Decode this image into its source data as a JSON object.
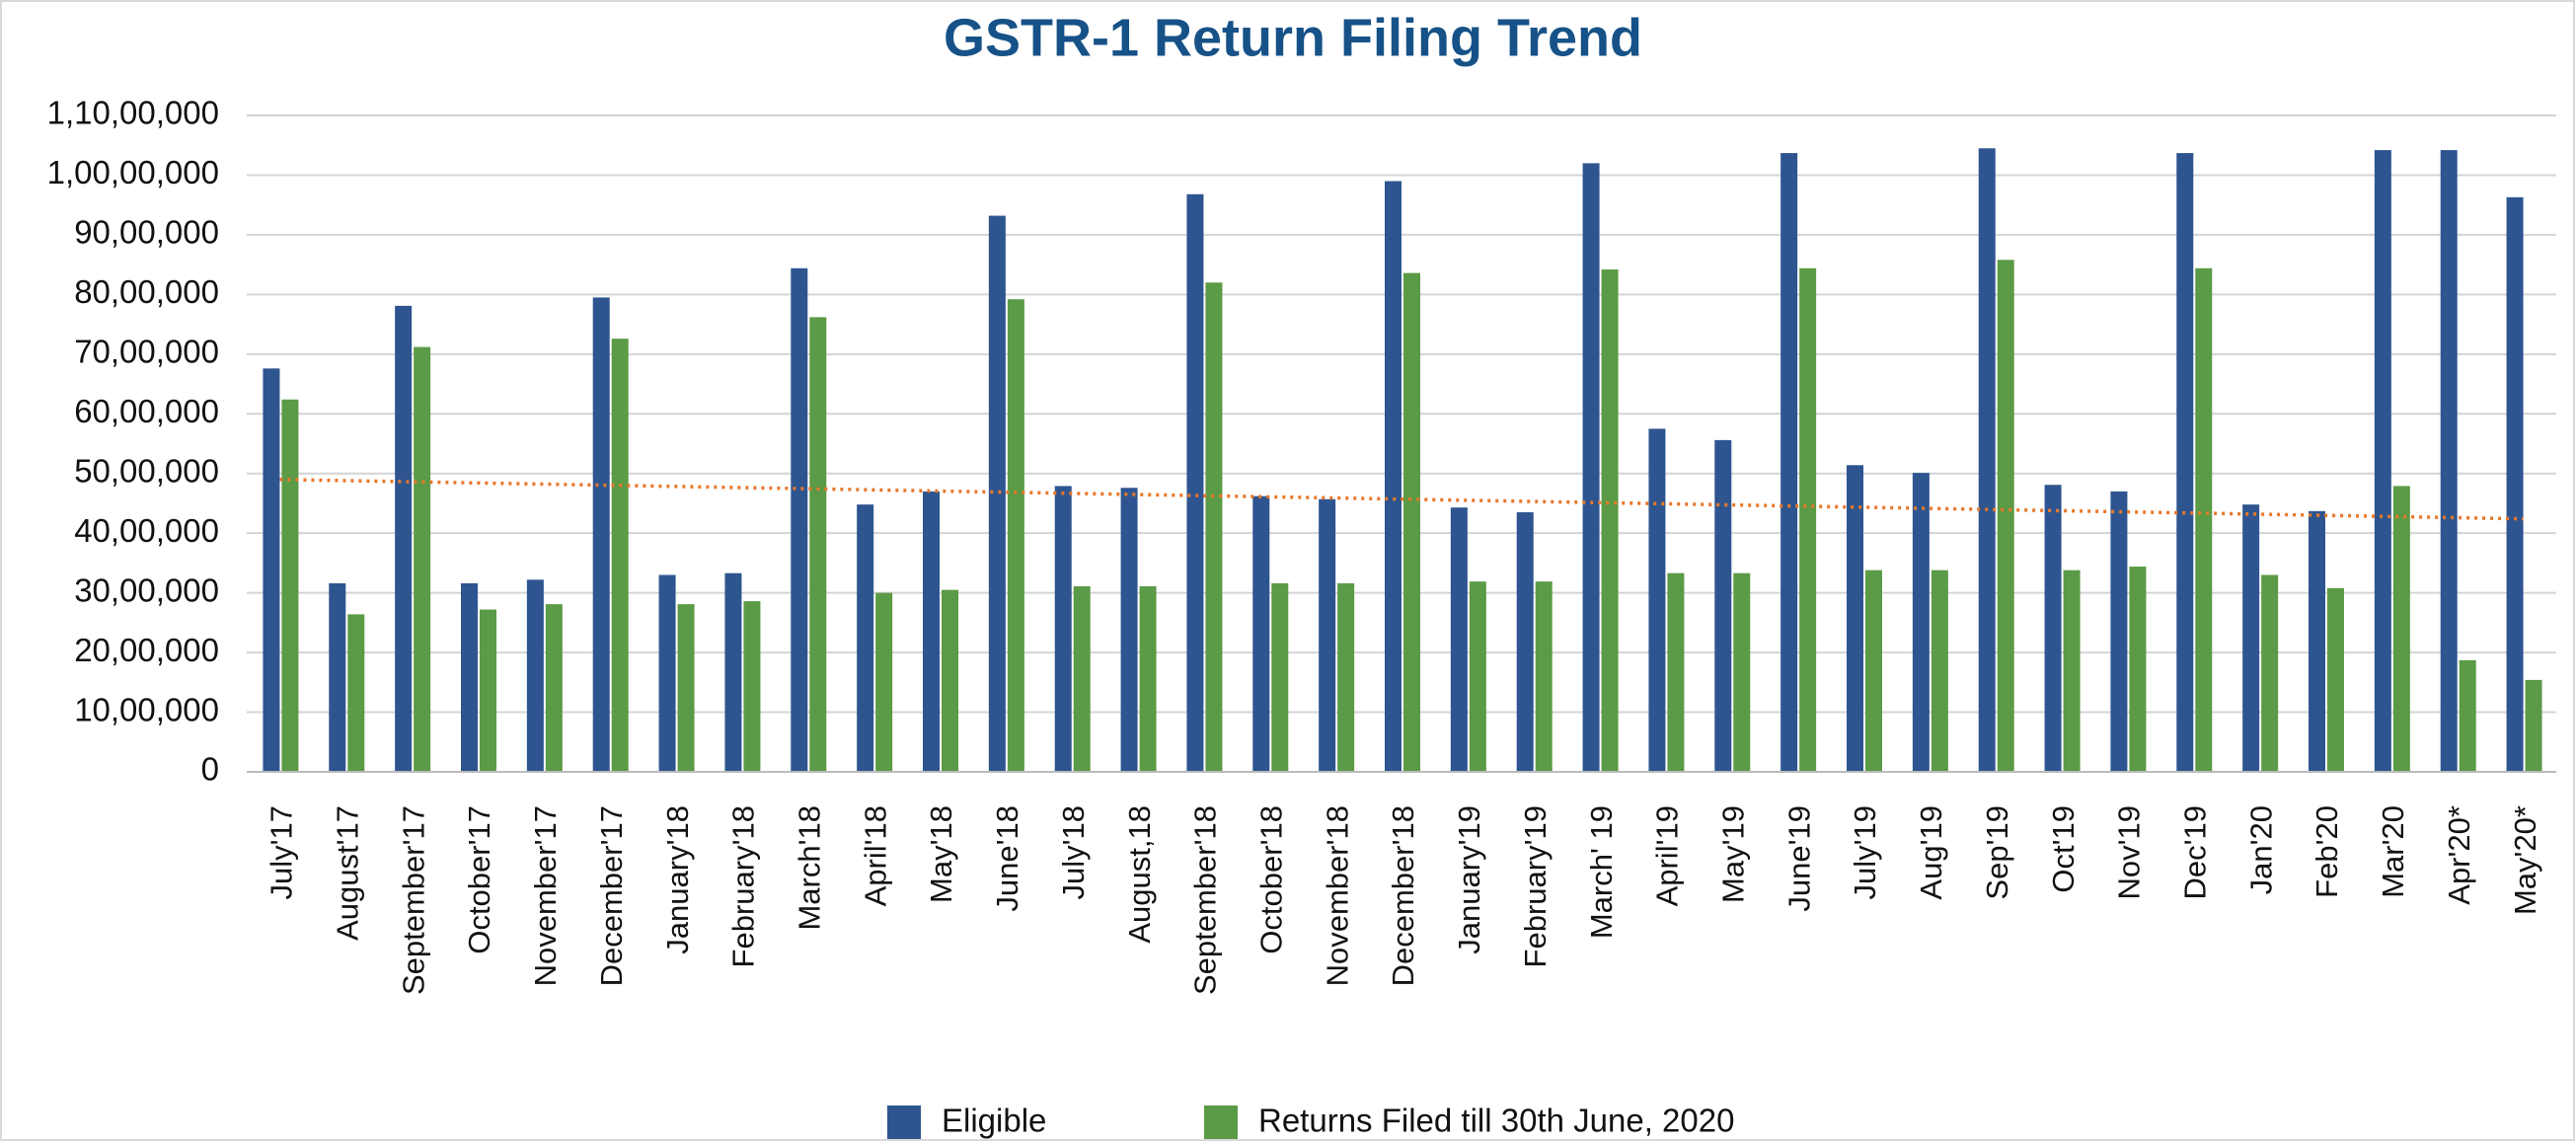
{
  "chart_data": {
    "type": "bar",
    "title": "GSTR-1 Return Filing Trend",
    "categories": [
      "July'17",
      "August'17",
      "September'17",
      "October'17",
      "November'17",
      "December'17",
      "January'18",
      "February'18",
      "March'18",
      "April'18",
      "May'18",
      "June'18",
      "July'18",
      "August,18",
      "September'18",
      "October'18",
      "November'18",
      "December'18",
      "January'19",
      "February'19",
      "March' 19",
      "April'19",
      "May'19",
      "June'19",
      "July'19",
      "Aug'19",
      "Sep'19",
      "Oct'19",
      "Nov'19",
      "Dec'19",
      "Jan'20",
      "Feb'20",
      "Mar'20",
      "Apr'20*",
      "May'20*"
    ],
    "series": [
      {
        "name": "Eligible",
        "color": "#2e5590",
        "values": [
          6760000,
          3160000,
          7810000,
          3160000,
          3220000,
          7950000,
          3300000,
          3330000,
          8440000,
          4480000,
          4700000,
          9320000,
          4790000,
          4760000,
          9680000,
          4620000,
          4570000,
          9900000,
          4430000,
          4350000,
          10200000,
          5750000,
          5560000,
          10370000,
          5140000,
          5010000,
          10450000,
          4810000,
          4700000,
          10370000,
          4480000,
          4370000,
          10420000,
          10420000,
          9630000
        ]
      },
      {
        "name": "Returns Filed till 30th June, 2020",
        "color": "#5b9a46",
        "values": [
          6240000,
          2640000,
          7120000,
          2720000,
          2810000,
          7260000,
          2810000,
          2860000,
          7620000,
          3000000,
          3050000,
          7920000,
          3110000,
          3110000,
          8200000,
          3160000,
          3160000,
          8360000,
          3190000,
          3190000,
          8420000,
          3330000,
          3330000,
          8440000,
          3380000,
          3380000,
          8580000,
          3380000,
          3440000,
          8440000,
          3300000,
          3080000,
          4790000,
          1870000,
          1540000
        ]
      }
    ],
    "trendline": {
      "color": "#e8782a",
      "values": [
        4900000,
        4240000
      ]
    },
    "ylim": [
      0,
      11000000
    ],
    "yticks": [
      0,
      {
        "value": 1000000,
        "label": "10,00,000"
      },
      {
        "value": 2000000,
        "label": "20,00,000"
      },
      {
        "value": 3000000,
        "label": "30,00,000"
      },
      {
        "value": 4000000,
        "label": "40,00,000"
      },
      {
        "value": 5000000,
        "label": "50,00,000"
      },
      {
        "value": 6000000,
        "label": "60,00,000"
      },
      {
        "value": 7000000,
        "label": "70,00,000"
      },
      {
        "value": 8000000,
        "label": "80,00,000"
      },
      {
        "value": 9000000,
        "label": "90,00,000"
      },
      {
        "value": 10000000,
        "label": "1,00,00,000"
      },
      {
        "value": 11000000,
        "label": "1,10,00,000"
      }
    ],
    "grid": true,
    "legend": "bottom"
  }
}
